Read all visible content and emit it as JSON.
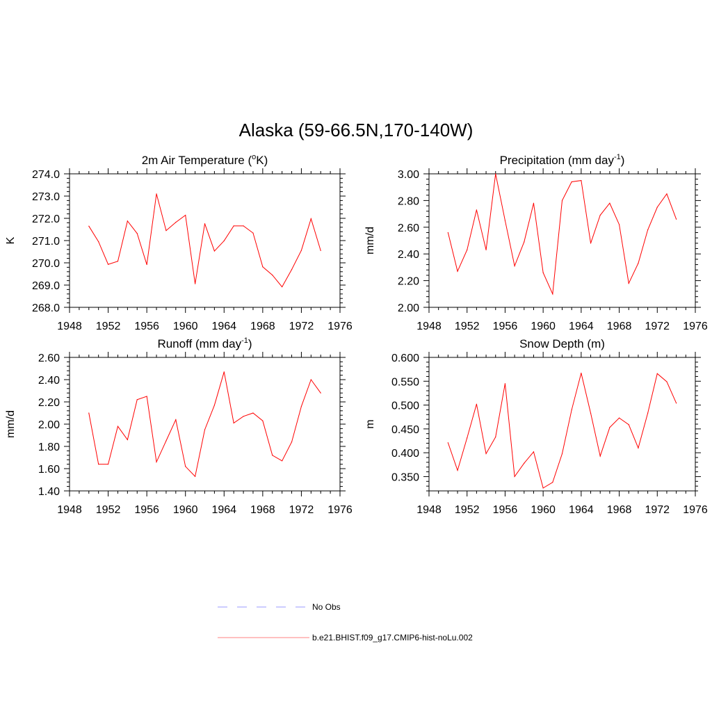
{
  "figure": {
    "title": "Alaska (59-66.5N,170-140W)",
    "legend": [
      {
        "label": "No Obs",
        "color": "#9999ff",
        "style": "dashed"
      },
      {
        "label": "b.e21.BHIST.f09_g17.CMIP6-hist-noLu.002",
        "color": "#ff8080",
        "style": "solid"
      }
    ]
  },
  "chart_data": [
    {
      "type": "line",
      "title": "2m Air Temperature (",
      "title_sup": "o",
      "title_after": "K)",
      "ylabel": "K",
      "xlim": [
        1948,
        1976
      ],
      "ylim": [
        268.0,
        274.0
      ],
      "x_ticks": [
        "1948",
        "1952",
        "1956",
        "1960",
        "1964",
        "1968",
        "1972",
        "1976"
      ],
      "y_ticks": [
        "268.0",
        "269.0",
        "270.0",
        "271.0",
        "272.0",
        "273.0",
        "274.0"
      ],
      "line_color": "#ff0000",
      "x": [
        1950,
        1951,
        1952,
        1953,
        1954,
        1955,
        1956,
        1957,
        1958,
        1959,
        1960,
        1961,
        1962,
        1963,
        1964,
        1965,
        1966,
        1967,
        1968,
        1969,
        1970,
        1971,
        1972,
        1973,
        1974
      ],
      "values": [
        271.65,
        270.95,
        269.93,
        270.07,
        271.88,
        271.32,
        269.92,
        273.1,
        271.45,
        271.82,
        272.14,
        269.06,
        271.76,
        270.53,
        270.99,
        271.66,
        271.66,
        271.34,
        269.82,
        269.45,
        268.92,
        269.7,
        270.56,
        271.98,
        270.55
      ]
    },
    {
      "type": "line",
      "title": "Precipitation (mm day",
      "title_sup": "-1",
      "title_after": ")",
      "ylabel": "mm/d",
      "xlim": [
        1948,
        1976
      ],
      "ylim": [
        2.0,
        3.0
      ],
      "x_ticks": [
        "1948",
        "1952",
        "1956",
        "1960",
        "1964",
        "1968",
        "1972",
        "1976"
      ],
      "y_ticks": [
        "2.00",
        "2.20",
        "2.40",
        "2.60",
        "2.80",
        "3.00"
      ],
      "line_color": "#ff0000",
      "x": [
        1950,
        1951,
        1952,
        1953,
        1954,
        1955,
        1956,
        1957,
        1958,
        1959,
        1960,
        1961,
        1962,
        1963,
        1964,
        1965,
        1966,
        1967,
        1968,
        1969,
        1970,
        1971,
        1972,
        1973,
        1974
      ],
      "values": [
        2.56,
        2.27,
        2.43,
        2.73,
        2.43,
        3.0,
        2.65,
        2.31,
        2.49,
        2.78,
        2.26,
        2.1,
        2.8,
        2.94,
        2.95,
        2.48,
        2.69,
        2.78,
        2.62,
        2.18,
        2.33,
        2.58,
        2.75,
        2.85,
        2.66
      ]
    },
    {
      "type": "line",
      "title": "Runoff (mm day",
      "title_sup": "-1",
      "title_after": ")",
      "ylabel": "mm/d",
      "xlim": [
        1948,
        1976
      ],
      "ylim": [
        1.4,
        2.6
      ],
      "x_ticks": [
        "1948",
        "1952",
        "1956",
        "1960",
        "1964",
        "1968",
        "1972",
        "1976"
      ],
      "y_ticks": [
        "1.40",
        "1.60",
        "1.80",
        "2.00",
        "2.20",
        "2.40",
        "2.60"
      ],
      "line_color": "#ff0000",
      "x": [
        1950,
        1951,
        1952,
        1953,
        1954,
        1955,
        1956,
        1957,
        1958,
        1959,
        1960,
        1961,
        1962,
        1963,
        1964,
        1965,
        1966,
        1967,
        1968,
        1969,
        1970,
        1971,
        1972,
        1973,
        1974
      ],
      "values": [
        2.1,
        1.64,
        1.64,
        1.98,
        1.86,
        2.22,
        2.25,
        1.66,
        1.85,
        2.04,
        1.62,
        1.53,
        1.95,
        2.17,
        2.47,
        2.01,
        2.07,
        2.1,
        2.03,
        1.72,
        1.67,
        1.84,
        2.16,
        2.4,
        2.28
      ]
    },
    {
      "type": "line",
      "title": "Snow Depth (m)",
      "title_sup": "",
      "title_after": "",
      "ylabel": "m",
      "xlim": [
        1948,
        1976
      ],
      "ylim": [
        0.32,
        0.6
      ],
      "x_ticks": [
        "1948",
        "1952",
        "1956",
        "1960",
        "1964",
        "1968",
        "1972",
        "1976"
      ],
      "y_ticks": [
        "0.350",
        "0.400",
        "0.450",
        "0.500",
        "0.550",
        "0.600"
      ],
      "y_tick_values": [
        0.35,
        0.4,
        0.45,
        0.5,
        0.55,
        0.6
      ],
      "line_color": "#ff0000",
      "x": [
        1950,
        1951,
        1952,
        1953,
        1954,
        1955,
        1956,
        1957,
        1958,
        1959,
        1960,
        1961,
        1962,
        1963,
        1964,
        1965,
        1966,
        1967,
        1968,
        1969,
        1970,
        1971,
        1972,
        1973,
        1974
      ],
      "values": [
        0.421,
        0.363,
        0.431,
        0.502,
        0.398,
        0.433,
        0.545,
        0.35,
        0.378,
        0.402,
        0.326,
        0.338,
        0.398,
        0.49,
        0.567,
        0.483,
        0.393,
        0.453,
        0.473,
        0.459,
        0.41,
        0.483,
        0.566,
        0.549,
        0.504
      ]
    }
  ]
}
